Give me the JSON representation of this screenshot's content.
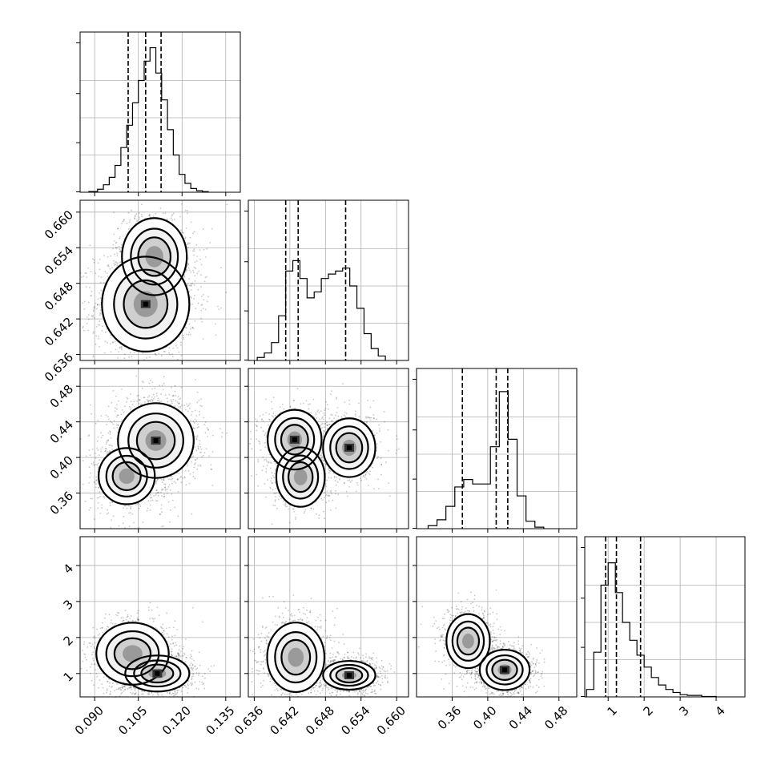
{
  "chart_data": {
    "type": "corner",
    "parameters": 4,
    "grid": true,
    "axes": [
      {
        "range": [
          0.085,
          0.14
        ],
        "ticks": [
          0.09,
          0.105,
          0.12,
          0.135
        ],
        "tick_labels": [
          "0.090",
          "0.105",
          "0.120",
          "0.135"
        ]
      },
      {
        "range": [
          0.635,
          0.662
        ],
        "ticks": [
          0.636,
          0.642,
          0.648,
          0.654,
          0.66
        ],
        "tick_labels": [
          "0.636",
          "0.642",
          "0.648",
          "0.654",
          "0.660"
        ]
      },
      {
        "range": [
          0.32,
          0.5
        ],
        "ticks": [
          0.36,
          0.4,
          0.44,
          0.48
        ],
        "tick_labels": [
          "0.36",
          "0.40",
          "0.44",
          "0.48"
        ]
      },
      {
        "range": [
          0.35,
          4.8
        ],
        "ticks": [
          1,
          2,
          3,
          4
        ],
        "tick_labels": [
          "1",
          "2",
          "3",
          "4"
        ]
      }
    ],
    "histograms": [
      {
        "param": 0,
        "quantiles": [
          0.1015,
          0.1075,
          0.1128
        ],
        "bins": [
          [
            0.088,
            0.091,
            0.005
          ],
          [
            0.091,
            0.093,
            0.02
          ],
          [
            0.093,
            0.095,
            0.05
          ],
          [
            0.095,
            0.097,
            0.1
          ],
          [
            0.097,
            0.099,
            0.18
          ],
          [
            0.099,
            0.101,
            0.3
          ],
          [
            0.101,
            0.103,
            0.45
          ],
          [
            0.103,
            0.105,
            0.6
          ],
          [
            0.105,
            0.107,
            0.75
          ],
          [
            0.107,
            0.109,
            0.88
          ],
          [
            0.109,
            0.111,
            0.97
          ],
          [
            0.111,
            0.113,
            0.8
          ],
          [
            0.113,
            0.115,
            0.62
          ],
          [
            0.115,
            0.117,
            0.42
          ],
          [
            0.117,
            0.119,
            0.25
          ],
          [
            0.119,
            0.121,
            0.12
          ],
          [
            0.121,
            0.123,
            0.06
          ],
          [
            0.123,
            0.125,
            0.025
          ],
          [
            0.125,
            0.127,
            0.01
          ],
          [
            0.127,
            0.129,
            0.004
          ]
        ]
      },
      {
        "param": 1,
        "quantiles": [
          0.6413,
          0.6434,
          0.6514
        ],
        "bins": [
          [
            0.6365,
            0.6377,
            0.02
          ],
          [
            0.6377,
            0.6389,
            0.05
          ],
          [
            0.6389,
            0.6401,
            0.12
          ],
          [
            0.6401,
            0.6413,
            0.3
          ],
          [
            0.6413,
            0.6425,
            0.6
          ],
          [
            0.6425,
            0.6437,
            0.67
          ],
          [
            0.6437,
            0.6449,
            0.55
          ],
          [
            0.6449,
            0.6461,
            0.42
          ],
          [
            0.6461,
            0.6473,
            0.46
          ],
          [
            0.6473,
            0.6485,
            0.55
          ],
          [
            0.6485,
            0.6497,
            0.58
          ],
          [
            0.6497,
            0.6509,
            0.6
          ],
          [
            0.6509,
            0.6521,
            0.62
          ],
          [
            0.6521,
            0.6533,
            0.5
          ],
          [
            0.6533,
            0.6545,
            0.35
          ],
          [
            0.6545,
            0.6557,
            0.18
          ],
          [
            0.6557,
            0.6569,
            0.08
          ],
          [
            0.6569,
            0.6581,
            0.03
          ]
        ]
      },
      {
        "param": 2,
        "quantiles": [
          0.3715,
          0.4095,
          0.4225
        ],
        "bins": [
          [
            0.333,
            0.343,
            0.02
          ],
          [
            0.343,
            0.353,
            0.06
          ],
          [
            0.353,
            0.363,
            0.15
          ],
          [
            0.363,
            0.373,
            0.28
          ],
          [
            0.373,
            0.383,
            0.33
          ],
          [
            0.383,
            0.393,
            0.3
          ],
          [
            0.393,
            0.403,
            0.3
          ],
          [
            0.403,
            0.413,
            0.55
          ],
          [
            0.413,
            0.423,
            0.92
          ],
          [
            0.423,
            0.433,
            0.6
          ],
          [
            0.433,
            0.443,
            0.22
          ],
          [
            0.443,
            0.453,
            0.05
          ],
          [
            0.453,
            0.463,
            0.01
          ]
        ]
      },
      {
        "param": 3,
        "quantiles": [
          0.93,
          1.23,
          1.9
        ],
        "bins": [
          [
            0.4,
            0.6,
            0.05
          ],
          [
            0.6,
            0.8,
            0.3
          ],
          [
            0.8,
            1.0,
            0.75
          ],
          [
            1.0,
            1.2,
            0.9
          ],
          [
            1.2,
            1.4,
            0.7
          ],
          [
            1.4,
            1.6,
            0.5
          ],
          [
            1.6,
            1.8,
            0.38
          ],
          [
            1.8,
            2.0,
            0.28
          ],
          [
            2.0,
            2.2,
            0.2
          ],
          [
            2.2,
            2.4,
            0.13
          ],
          [
            2.4,
            2.6,
            0.08
          ],
          [
            2.6,
            2.8,
            0.05
          ],
          [
            2.8,
            3.0,
            0.03
          ],
          [
            3.0,
            3.2,
            0.015
          ],
          [
            3.2,
            3.6,
            0.01
          ],
          [
            3.6,
            4.0,
            0.003
          ]
        ]
      }
    ],
    "pairs": [
      {
        "x": 0,
        "y": 1,
        "modes": [
          [
            0.1075,
            0.6445,
            0.0075,
            0.004,
            1.0
          ],
          [
            0.1105,
            0.6525,
            0.006,
            0.0035,
            0.55
          ]
        ]
      },
      {
        "x": 0,
        "y": 2,
        "modes": [
          [
            0.111,
            0.419,
            0.0065,
            0.021,
            1.0
          ],
          [
            0.101,
            0.379,
            0.0055,
            0.018,
            0.35
          ]
        ]
      },
      {
        "x": 1,
        "y": 2,
        "modes": [
          [
            0.6428,
            0.42,
            0.0023,
            0.017,
            0.9
          ],
          [
            0.652,
            0.411,
            0.0022,
            0.0165,
            1.0
          ],
          [
            0.6438,
            0.378,
            0.0022,
            0.018,
            0.55
          ]
        ]
      },
      {
        "x": 0,
        "y": 3,
        "modes": [
          [
            0.103,
            1.55,
            0.0065,
            0.45,
            0.7
          ],
          [
            0.1115,
            1.0,
            0.0055,
            0.25,
            1.0
          ]
        ]
      },
      {
        "x": 1,
        "y": 3,
        "modes": [
          [
            0.643,
            1.45,
            0.0025,
            0.5,
            0.75
          ],
          [
            0.652,
            0.95,
            0.0022,
            0.2,
            1.0
          ]
        ]
      },
      {
        "x": 2,
        "y": 3,
        "modes": [
          [
            0.378,
            1.9,
            0.013,
            0.4,
            0.6
          ],
          [
            0.419,
            1.1,
            0.014,
            0.28,
            1.0
          ]
        ]
      }
    ]
  }
}
